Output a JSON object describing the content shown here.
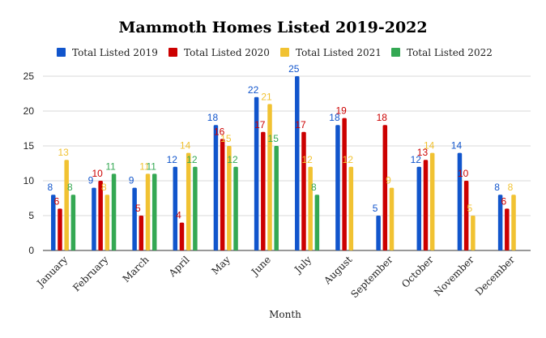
{
  "chart_data": {
    "type": "bar",
    "title": "Mammoth Homes Listed 2019-2022",
    "xlabel": "Month",
    "ylabel": "",
    "ylim": [
      0,
      25
    ],
    "yticks": [
      0,
      5,
      10,
      15,
      20,
      25
    ],
    "grid": true,
    "legend_position": "top",
    "categories": [
      "January",
      "February",
      "March",
      "April",
      "May",
      "June",
      "July",
      "August",
      "September",
      "October",
      "November",
      "December"
    ],
    "series": [
      {
        "name": "Total Listed 2019",
        "color": "#1155cc",
        "label_color": "#1155cc",
        "values": [
          8,
          9,
          9,
          12,
          18,
          22,
          25,
          18,
          5,
          12,
          14,
          8
        ]
      },
      {
        "name": "Total Listed 2020",
        "color": "#cc0000",
        "label_color": "#cc0000",
        "values": [
          6,
          10,
          5,
          4,
          16,
          17,
          17,
          19,
          18,
          13,
          10,
          6
        ]
      },
      {
        "name": "Total Listed 2021",
        "color": "#f1c232",
        "label_color": "#f1c232",
        "values": [
          13,
          8,
          11,
          14,
          15,
          21,
          12,
          12,
          9,
          14,
          5,
          8
        ]
      },
      {
        "name": "Total Listed 2022",
        "color": "#34a853",
        "label_color": "#34a853",
        "values": [
          8,
          11,
          11,
          12,
          12,
          15,
          8,
          null,
          null,
          null,
          null,
          null
        ]
      }
    ]
  }
}
